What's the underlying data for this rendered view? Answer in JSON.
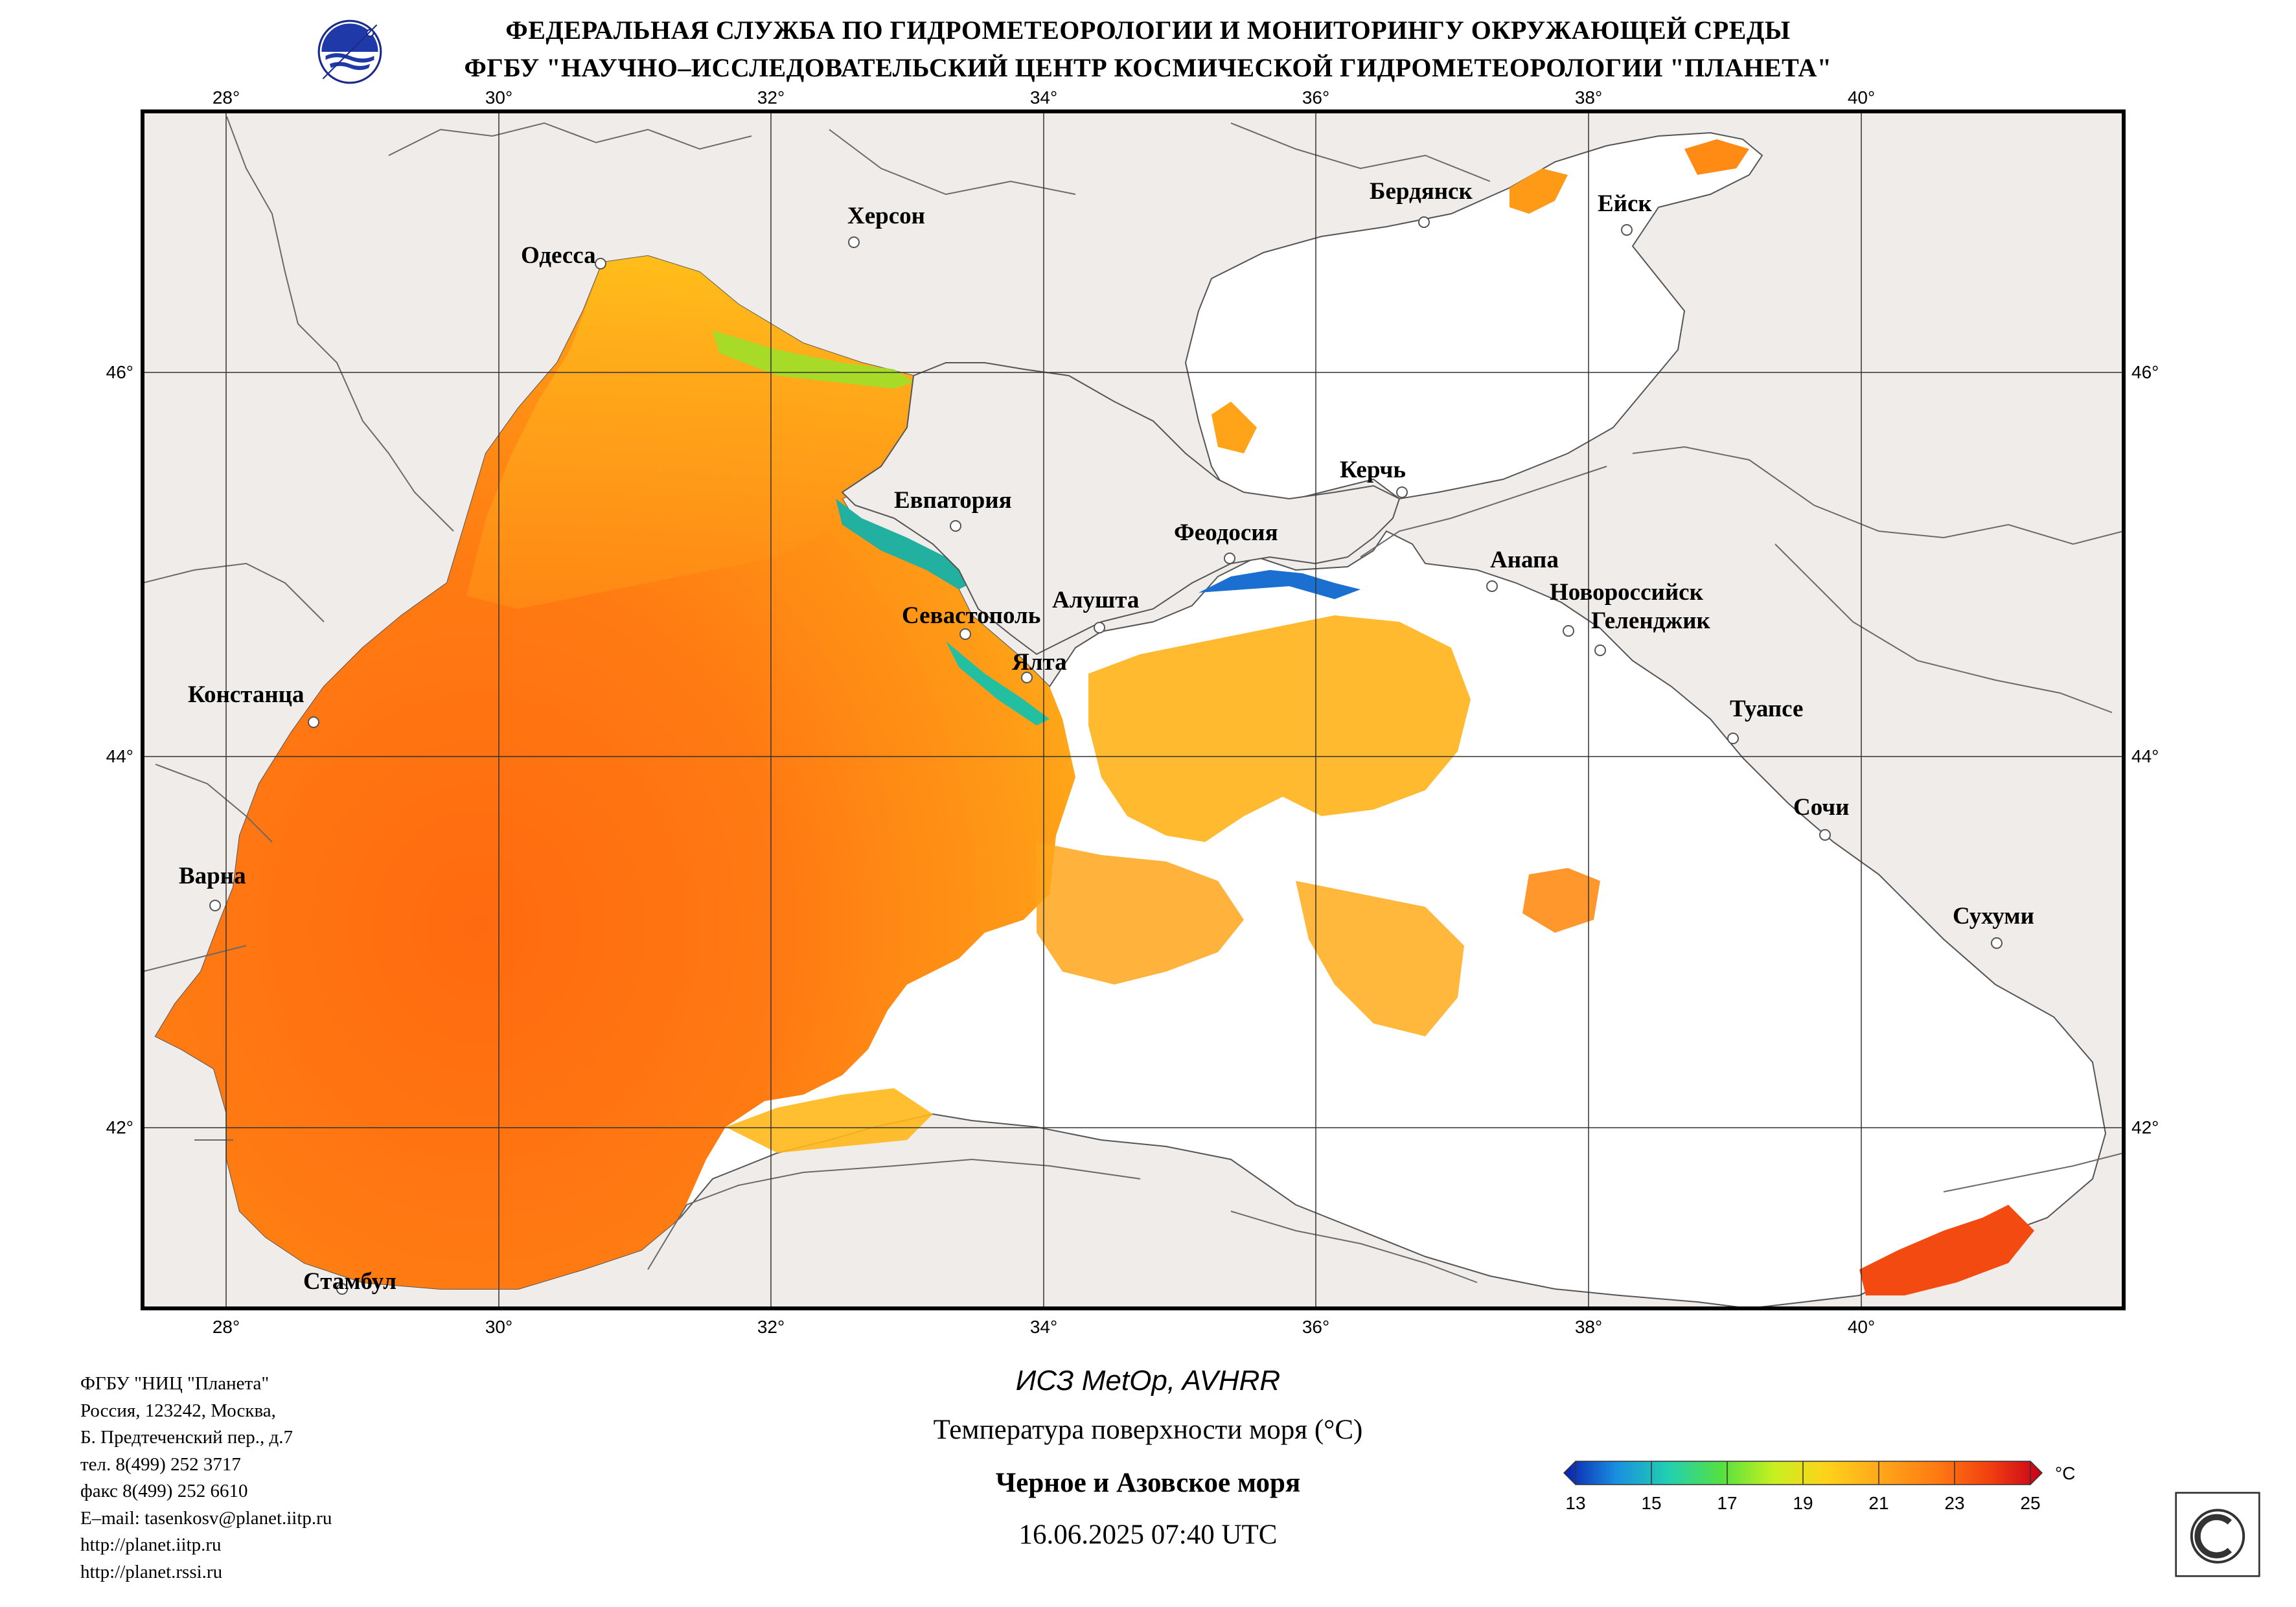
{
  "header": {
    "line1": "ФЕДЕРАЛЬНАЯ СЛУЖБА ПО ГИДРОМЕТЕОРОЛОГИИ И МОНИТОРИНГУ ОКРУЖАЮЩЕЙ СРЕДЫ",
    "line2": "ФГБУ \"НАУЧНО–ИССЛЕДОВАТЕЛЬСКИЙ ЦЕНТР КОСМИЧЕСКОЙ ГИДРОМЕТЕОРОЛОГИИ \"ПЛАНЕТА\""
  },
  "map": {
    "longitude_ticks": [
      "28°",
      "30°",
      "32°",
      "34°",
      "36°",
      "38°",
      "40°"
    ],
    "latitude_ticks": [
      "46°",
      "44°",
      "42°"
    ],
    "cities": [
      {
        "name": "Одесса"
      },
      {
        "name": "Херсон"
      },
      {
        "name": "Бердянск"
      },
      {
        "name": "Ейск"
      },
      {
        "name": "Евпатория"
      },
      {
        "name": "Керчь"
      },
      {
        "name": "Феодосия"
      },
      {
        "name": "Анапа"
      },
      {
        "name": "Новороссийск"
      },
      {
        "name": "Севастополь"
      },
      {
        "name": "Алушта"
      },
      {
        "name": "Геленджик"
      },
      {
        "name": "Ялта"
      },
      {
        "name": "Туапсе"
      },
      {
        "name": "Констанца"
      },
      {
        "name": "Сочи"
      },
      {
        "name": "Варна"
      },
      {
        "name": "Сухуми"
      },
      {
        "name": "Стамбул"
      }
    ],
    "colors": {
      "land": "#efecea",
      "cloud": "#ffffff",
      "grid": "#333333",
      "border": "#6a6a6a"
    }
  },
  "footer": {
    "address_lines": [
      "ФГБУ \"НИЦ \"Планета\"",
      "Россия, 123242, Москва,",
      "Б. Предтеченский пер., д.7",
      "тел. 8(499) 252 3717",
      "факс 8(499) 252 6610",
      "E–mail: tasenkosv@planet.iitp.ru",
      "http://planet.iitp.ru",
      "http://planet.rssi.ru"
    ],
    "satellite": "ИСЗ MetOp, AVHRR",
    "parameter": "Температура поверхности моря (°C)",
    "region": "Черное и Азовское моря",
    "datetime": "16.06.2025 07:40 UTC"
  },
  "colorbar": {
    "unit": "°C",
    "min": 13,
    "max": 25,
    "ticks": [
      "13",
      "15",
      "17",
      "19",
      "21",
      "23",
      "25"
    ],
    "colors": [
      "#0a1fb0",
      "#1a8fe0",
      "#22d0b0",
      "#55e040",
      "#c8f020",
      "#ffd21a",
      "#ffa81a",
      "#ff7a12",
      "#f24010",
      "#c8001a"
    ]
  }
}
